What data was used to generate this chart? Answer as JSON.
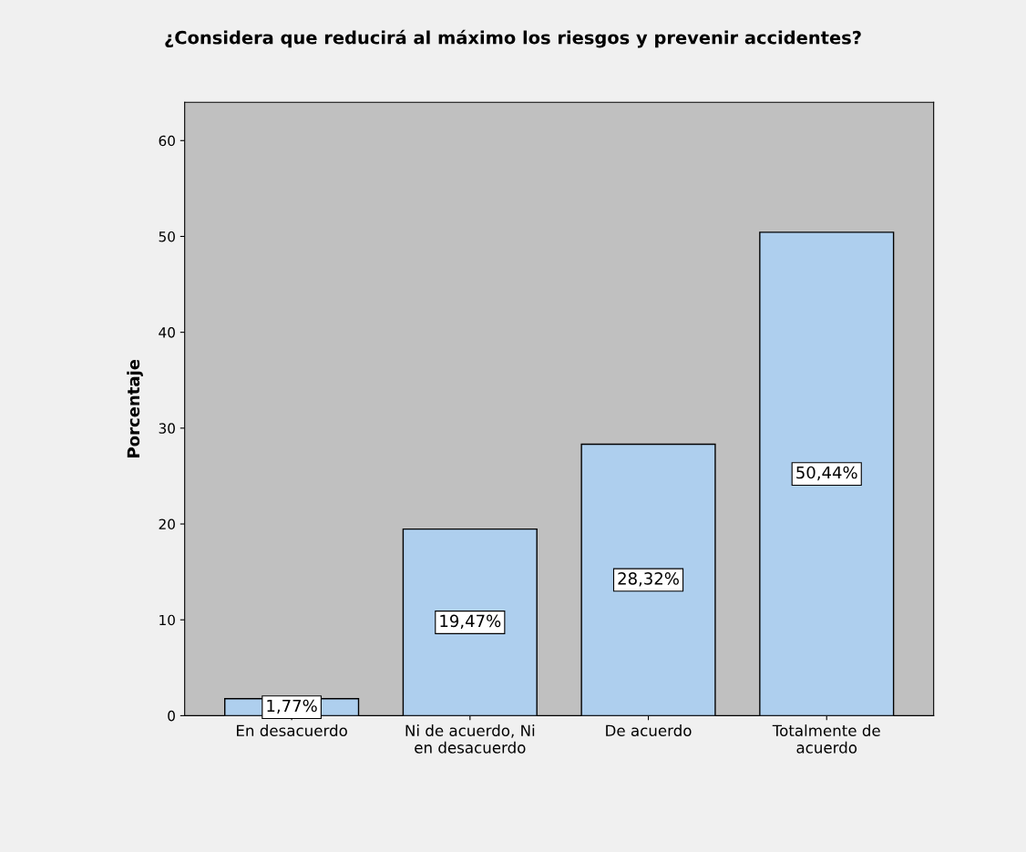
{
  "chart_data": {
    "type": "bar",
    "title": "¿Considera que reducirá al máximo los riesgos y prevenir accidentes?",
    "ylabel": "Porcentaje",
    "categories": [
      "En desacuerdo",
      "Ni de acuerdo, Ni\nen desacuerdo",
      "De acuerdo",
      "Totalmente de\nacuerdo"
    ],
    "values": [
      1.77,
      19.47,
      28.32,
      50.44
    ],
    "value_labels": [
      "1,77%",
      "19,47%",
      "28,32%",
      "50,44%"
    ],
    "color": "#aecfee",
    "ylim": [
      0,
      64
    ],
    "yticks": [
      0,
      10,
      20,
      30,
      40,
      50,
      60
    ],
    "grid": false
  }
}
